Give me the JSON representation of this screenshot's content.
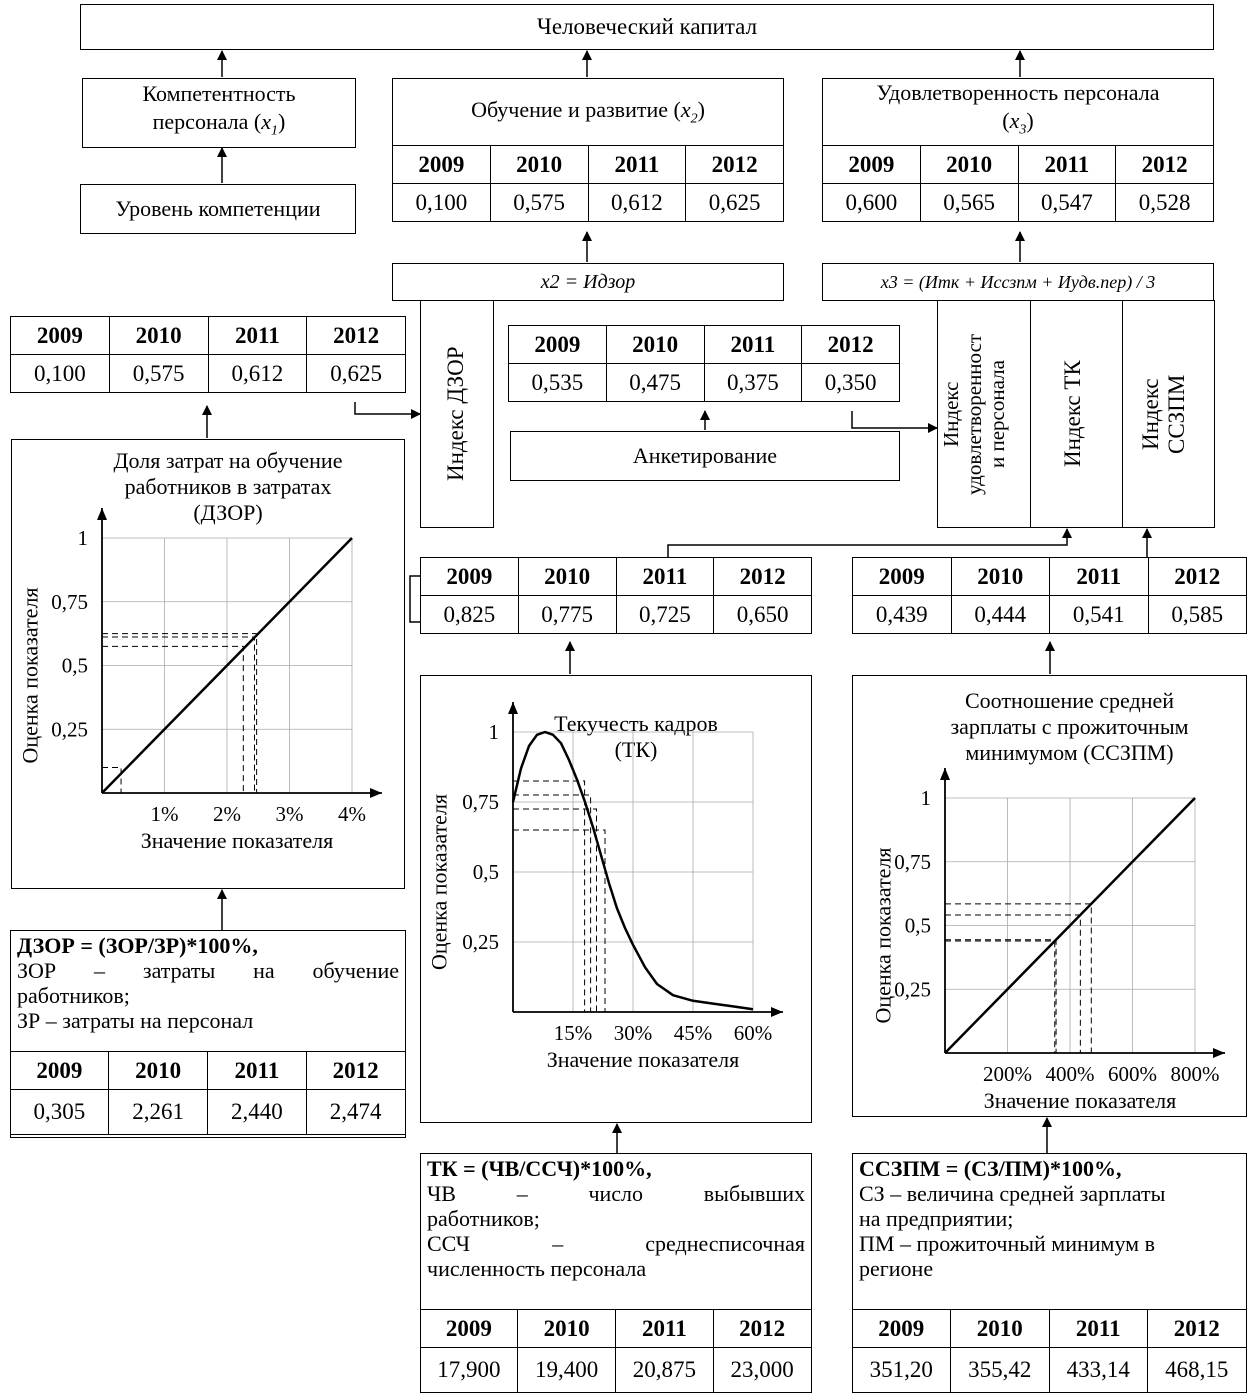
{
  "top": {
    "title": "Человеческий капитал"
  },
  "competence": {
    "title": "Компетентность персонала (x1)",
    "line1": "Компетентность",
    "line2": "персонала (",
    "var": "x",
    "sub": "1",
    "close": ")",
    "level": "Уровень компетенции"
  },
  "training": {
    "title": "Обучение и развитие (x2)",
    "text": "Обучение и развитие (",
    "var": "x",
    "sub": "2",
    "close": ")",
    "years": [
      "2009",
      "2010",
      "2011",
      "2012"
    ],
    "values": [
      "0,100",
      "0,575",
      "0,612",
      "0,625"
    ]
  },
  "satisfaction": {
    "line1": "Удовлетворенность персонала",
    "var": "x",
    "sub": "3",
    "open": "(",
    "close": ")",
    "years": [
      "2009",
      "2010",
      "2011",
      "2012"
    ],
    "values": [
      "0,600",
      "0,565",
      "0,547",
      "0,528"
    ]
  },
  "formula_x2": {
    "text": "x2 = Идзор"
  },
  "formula_x3": {
    "text": "x3 = (Итк + Иссзпм + Иудв.пер) / 3"
  },
  "dzor_index": {
    "label": "Индекс ДЗОР",
    "years": [
      "2009",
      "2010",
      "2011",
      "2012"
    ],
    "values": [
      "0,100",
      "0,575",
      "0,612",
      "0,625"
    ]
  },
  "survey": {
    "label": "Анкетирование",
    "years": [
      "2009",
      "2010",
      "2011",
      "2012"
    ],
    "values": [
      "0,535",
      "0,475",
      "0,375",
      "0,350"
    ]
  },
  "index_sat": {
    "label": "Индекс удовлетворенност и персонала",
    "line1": "Индекс",
    "line2": "удовлетворенност",
    "line3": "и персонала"
  },
  "index_tk": {
    "label": "Индекс ТК"
  },
  "index_sszpm": {
    "label": "Индекс ССЗПМ",
    "line1": "Индекс",
    "line2": "ССЗПМ"
  },
  "tk_table": {
    "years": [
      "2009",
      "2010",
      "2011",
      "2012"
    ],
    "values": [
      "0,825",
      "0,775",
      "0,725",
      "0,650"
    ]
  },
  "sszpm_table": {
    "years": [
      "2009",
      "2010",
      "2011",
      "2012"
    ],
    "values": [
      "0,439",
      "0,444",
      "0,541",
      "0,585"
    ]
  },
  "dzor_formula": {
    "title": "ДЗОР = (ЗОР/ЗР)*100%,",
    "l1a": "ЗОР",
    "l1b": "–",
    "l1c": "затраты",
    "l1d": "на",
    "l1e": "обучение",
    "l2": "работников;",
    "l3": "ЗР – затраты на персонал",
    "years": [
      "2009",
      "2010",
      "2011",
      "2012"
    ],
    "values": [
      "0,305",
      "2,261",
      "2,440",
      "2,474"
    ]
  },
  "tk_formula": {
    "title": "ТК = (ЧВ/ССЧ)*100%,",
    "l1a": "ЧВ",
    "l1b": "–",
    "l1c": "число",
    "l1d": "выбывших",
    "l2": "работников;",
    "l3a": "ССЧ",
    "l3b": "–",
    "l3c": "среднесписочная",
    "l4": "численность персонала",
    "years": [
      "2009",
      "2010",
      "2011",
      "2012"
    ],
    "values": [
      "17,900",
      "19,400",
      "20,875",
      "23,000"
    ]
  },
  "sszpm_formula": {
    "title": "ССЗПМ = (СЗ/ПМ)*100%,",
    "l1": "СЗ – величина средней зарплаты",
    "l2": "на предприятии;",
    "l3": "ПМ – прожиточный минимум в",
    "l4": "регионе",
    "years": [
      "2009",
      "2010",
      "2011",
      "2012"
    ],
    "values": [
      "351,20",
      "355,42",
      "433,14",
      "468,15"
    ]
  },
  "chart_data": [
    {
      "type": "line",
      "title": "Доля затрат на обучение работников в затратах (ДЗОР)",
      "title_lines": [
        "Доля затрат на обучение",
        "работников в затратах",
        "(ДЗОР)"
      ],
      "xlabel": "Значение показателя",
      "ylabel": "Оценка показателя",
      "xticks": [
        "1%",
        "2%",
        "3%",
        "4%"
      ],
      "yticks": [
        "1",
        "0,75",
        "0,5",
        "0,25"
      ],
      "xlim": [
        0,
        4
      ],
      "ylim": [
        0,
        1
      ],
      "grid": true,
      "x": [
        0,
        4
      ],
      "y": [
        0,
        1
      ],
      "markers": [
        {
          "x": 0.305,
          "y": 0.1
        },
        {
          "x": 2.261,
          "y": 0.575
        },
        {
          "x": 2.44,
          "y": 0.612
        },
        {
          "x": 2.474,
          "y": 0.625
        }
      ]
    },
    {
      "type": "line",
      "title": "Текучесть кадров (ТК)",
      "title_lines": [
        "Текучесть кадров",
        "(ТК)"
      ],
      "xlabel": "Значение показателя",
      "ylabel": "Оценка показателя",
      "xticks": [
        "15%",
        "30%",
        "45%",
        "60%"
      ],
      "yticks": [
        "1",
        "0,75",
        "0,5",
        "0,25"
      ],
      "xlim": [
        0,
        60
      ],
      "ylim": [
        0,
        1
      ],
      "grid": true,
      "x": [
        0,
        2,
        4,
        6,
        8,
        10,
        12,
        14,
        16,
        18,
        20,
        22,
        24,
        26,
        28,
        30,
        33,
        36,
        40,
        45,
        50,
        55,
        60
      ],
      "y": [
        0.75,
        0.87,
        0.95,
        0.99,
        1.0,
        0.99,
        0.96,
        0.9,
        0.83,
        0.75,
        0.66,
        0.56,
        0.46,
        0.37,
        0.3,
        0.24,
        0.16,
        0.1,
        0.06,
        0.04,
        0.03,
        0.02,
        0.01
      ],
      "markers": [
        {
          "x": 17.9,
          "y": 0.825
        },
        {
          "x": 19.4,
          "y": 0.775
        },
        {
          "x": 20.875,
          "y": 0.725
        },
        {
          "x": 23.0,
          "y": 0.65
        }
      ]
    },
    {
      "type": "line",
      "title": "Соотношение средней зарплаты с прожиточным минимумом (ССЗПМ)",
      "title_lines": [
        "Соотношение средней",
        "зарплаты с прожиточным",
        "минимумом (ССЗПМ)"
      ],
      "xlabel": "Значение показателя",
      "ylabel": "Оценка показателя",
      "xticks": [
        "200%",
        "400%",
        "600%",
        "800%"
      ],
      "yticks": [
        "1",
        "0,75",
        "0,5",
        "0,25"
      ],
      "xlim": [
        0,
        800
      ],
      "ylim": [
        0,
        1
      ],
      "grid": true,
      "x": [
        0,
        800
      ],
      "y": [
        0,
        1
      ],
      "markers": [
        {
          "x": 351.2,
          "y": 0.439
        },
        {
          "x": 355.42,
          "y": 0.444
        },
        {
          "x": 433.14,
          "y": 0.541
        },
        {
          "x": 468.15,
          "y": 0.585
        }
      ]
    }
  ]
}
